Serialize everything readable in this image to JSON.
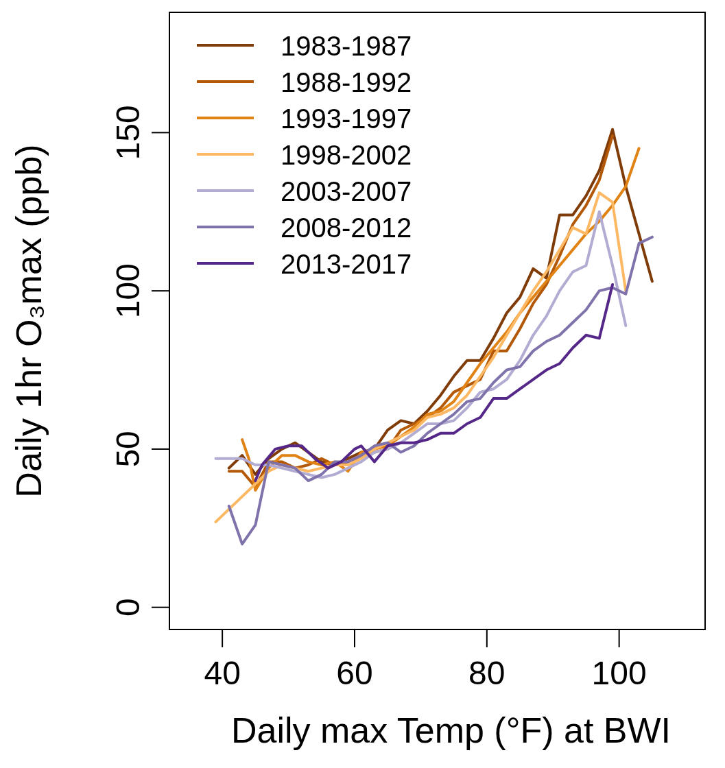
{
  "chart_data": {
    "type": "line",
    "xlabel": "Daily max Temp (°F) at BWI",
    "ylabel": "Daily 1hr O₃max (ppb)",
    "xlim": [
      32,
      113
    ],
    "ylim": [
      -7,
      188
    ],
    "xticks": [
      40,
      60,
      80,
      100
    ],
    "yticks": [
      0,
      50,
      100,
      150
    ],
    "grid": false,
    "legend": "top left",
    "marker": "none",
    "line_style": "solid",
    "series": [
      {
        "name": "1983-1987",
        "color": "#7f3b08",
        "x": [
          41,
          43,
          45,
          47,
          49,
          51,
          53,
          55,
          57,
          59,
          61,
          63,
          65,
          67,
          69,
          71,
          73,
          75,
          77,
          79,
          81,
          83,
          85,
          87,
          89,
          91,
          93,
          95,
          97,
          99,
          101,
          103,
          105
        ],
        "values": [
          44,
          48,
          42,
          47,
          50,
          52,
          49,
          46,
          45,
          47,
          49,
          50,
          56,
          59,
          58,
          62,
          67,
          73,
          78,
          78,
          85,
          93,
          98,
          107,
          104,
          124,
          124,
          130,
          138,
          151,
          133,
          118,
          103
        ]
      },
      {
        "name": "1988-1992",
        "color": "#b35806",
        "x": [
          41,
          43,
          45,
          47,
          49,
          51,
          53,
          55,
          57,
          59,
          61,
          63,
          65,
          67,
          69,
          71,
          73,
          75,
          77,
          79,
          81,
          83,
          85,
          87,
          89,
          91,
          93,
          95,
          97,
          99
        ],
        "values": [
          43,
          43,
          38,
          46,
          46,
          44,
          45,
          47,
          45,
          46,
          48,
          49,
          50,
          56,
          58,
          60,
          63,
          68,
          70,
          72,
          81,
          81,
          88,
          96,
          102,
          111,
          121,
          127,
          135,
          149
        ]
      },
      {
        "name": "1993-1997",
        "color": "#e08214",
        "x": [
          43,
          44,
          45,
          47,
          49,
          51,
          53,
          55,
          57,
          59,
          61,
          63,
          65,
          67,
          69,
          71,
          73,
          75,
          77,
          79,
          81,
          83,
          85,
          87,
          89,
          91,
          93,
          95,
          97,
          99,
          101,
          103
        ],
        "values": [
          53,
          47,
          37,
          44,
          48,
          48,
          46,
          45,
          46,
          43,
          49,
          50,
          51,
          54,
          57,
          61,
          62,
          65,
          71,
          77,
          82,
          87,
          93,
          98,
          103,
          108,
          113,
          118,
          122,
          127,
          133,
          145
        ]
      },
      {
        "name": "1998-2002",
        "color": "#fdb863",
        "x": [
          39,
          41,
          43,
          45,
          47,
          49,
          51,
          53,
          55,
          57,
          59,
          61,
          63,
          65,
          67,
          69,
          71,
          73,
          75,
          77,
          79,
          81,
          83,
          85,
          87,
          89,
          91,
          93,
          95,
          97,
          99,
          101
        ],
        "values": [
          27,
          31,
          35,
          39,
          43,
          45,
          44,
          43,
          44,
          45,
          45,
          47,
          50,
          52,
          54,
          56,
          60,
          61,
          63,
          67,
          73,
          79,
          86,
          93,
          100,
          106,
          113,
          120,
          118,
          131,
          128,
          100
        ]
      },
      {
        "name": "2003-2007",
        "color": "#b2abd2",
        "x": [
          39,
          41,
          43,
          45,
          47,
          49,
          51,
          53,
          55,
          57,
          59,
          61,
          63,
          65,
          67,
          69,
          71,
          73,
          75,
          77,
          79,
          81,
          83,
          85,
          87,
          89,
          91,
          93,
          95,
          97,
          99,
          101
        ],
        "values": [
          47,
          47,
          47,
          45,
          45,
          44,
          43,
          42,
          41,
          42,
          44,
          46,
          49,
          50,
          52,
          55,
          58,
          58,
          59,
          63,
          68,
          69,
          72,
          78,
          86,
          92,
          100,
          106,
          108,
          125,
          108,
          89
        ]
      },
      {
        "name": "2008-2012",
        "color": "#8073ac",
        "x": [
          41,
          43,
          45,
          47,
          49,
          51,
          53,
          55,
          57,
          59,
          61,
          63,
          65,
          67,
          69,
          71,
          73,
          75,
          77,
          79,
          81,
          83,
          85,
          87,
          89,
          91,
          93,
          95,
          97,
          99,
          101,
          103,
          105
        ],
        "values": [
          32,
          20,
          26,
          46,
          45,
          44,
          40,
          42,
          46,
          46,
          48,
          51,
          52,
          49,
          51,
          55,
          58,
          61,
          65,
          66,
          71,
          75,
          76,
          81,
          84,
          86,
          90,
          94,
          100,
          101,
          99,
          115,
          117
        ]
      },
      {
        "name": "2013-2017",
        "color": "#542788",
        "x": [
          45,
          46,
          48,
          50,
          52,
          54,
          56,
          58,
          60,
          61,
          63,
          65,
          67,
          69,
          71,
          73,
          75,
          77,
          79,
          81,
          83,
          85,
          87,
          89,
          91,
          93,
          95,
          97,
          99
        ],
        "values": [
          40,
          45,
          50,
          51,
          51,
          47,
          44,
          46,
          50,
          51,
          46,
          51,
          52,
          52,
          53,
          55,
          55,
          58,
          60,
          66,
          66,
          69,
          72,
          75,
          77,
          82,
          86,
          85,
          102
        ]
      }
    ]
  }
}
